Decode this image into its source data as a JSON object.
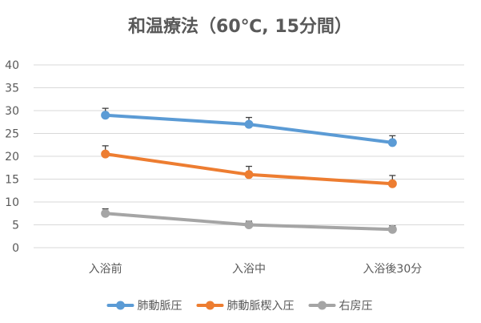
{
  "chart_data": {
    "type": "line",
    "title": "和温療法（60℃, 15分間）",
    "xlabel": "",
    "ylabel": "",
    "categories": [
      "入浴前",
      "入浴中",
      "入浴後30分"
    ],
    "ylim": [
      0,
      40
    ],
    "yticks": [
      0,
      5,
      10,
      15,
      20,
      25,
      30,
      35,
      40
    ],
    "grid": true,
    "legend_position": "bottom",
    "series": [
      {
        "name": "肺動脈圧",
        "color": "#5B9BD5",
        "values": [
          29,
          27,
          23
        ],
        "errors": [
          1.5,
          1.5,
          1.5
        ]
      },
      {
        "name": "肺動脈楔入圧",
        "color": "#ED7D31",
        "values": [
          20.5,
          16,
          14
        ],
        "errors": [
          1.8,
          1.8,
          1.8
        ]
      },
      {
        "name": "右房圧",
        "color": "#A5A5A5",
        "values": [
          7.5,
          5,
          4
        ],
        "errors": [
          1,
          0.8,
          0.8
        ]
      }
    ]
  }
}
